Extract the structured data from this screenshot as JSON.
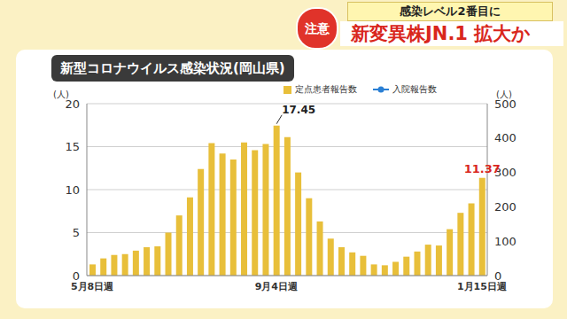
{
  "header": {
    "badge": "注意",
    "kicker": "感染レベル2番目に",
    "headline": "新変異株JN.1 拡大か"
  },
  "chart_data": {
    "type": "bar",
    "title": "新型コロナウイルス感染状況(岡山県)",
    "ylabel": "(人)",
    "y2label": "(人)",
    "categories": [
      "5月8日週",
      null,
      null,
      null,
      null,
      null,
      null,
      null,
      null,
      null,
      null,
      null,
      null,
      null,
      null,
      null,
      null,
      "9月4日週",
      null,
      null,
      null,
      null,
      null,
      null,
      null,
      null,
      null,
      null,
      null,
      null,
      null,
      null,
      null,
      null,
      null,
      null,
      "1月15日週"
    ],
    "series": [
      {
        "name": "定点患者報告数",
        "type": "bar",
        "color": "#e8bf3a",
        "values": [
          1.3,
          2.0,
          2.4,
          2.5,
          2.9,
          3.3,
          3.4,
          5.0,
          7.0,
          9.1,
          12.4,
          15.4,
          14.2,
          13.5,
          15.5,
          14.6,
          15.3,
          17.45,
          16.1,
          12.0,
          9.0,
          6.3,
          4.3,
          3.3,
          2.7,
          2.3,
          1.3,
          1.2,
          1.6,
          2.2,
          2.8,
          3.6,
          3.5,
          5.4,
          7.3,
          8.4,
          11.37
        ]
      },
      {
        "name": "入院報告数",
        "type": "line",
        "axis": "y2",
        "color": "#2a7fd4",
        "marker": "circle",
        "values": [
          null,
          null,
          null,
          null,
          null,
          null,
          null,
          null,
          null,
          null,
          null,
          null,
          null,
          null,
          null,
          null,
          null,
          null,
          null,
          null,
          null,
          null,
          null,
          null,
          null,
          null,
          null,
          null,
          null,
          null,
          null,
          null,
          null,
          null,
          null,
          null,
          null
        ]
      }
    ],
    "annotations": [
      {
        "index": 17,
        "label": "17.45"
      },
      {
        "index": 36,
        "label": "11.37"
      }
    ],
    "ylim": [
      0,
      20
    ],
    "yticks": [
      0,
      5,
      10,
      15,
      20
    ],
    "y2lim": [
      0,
      500
    ],
    "y2ticks": [
      0,
      100,
      200,
      300,
      400,
      500
    ],
    "grid": true
  }
}
